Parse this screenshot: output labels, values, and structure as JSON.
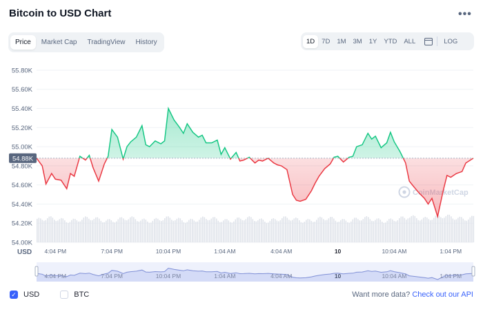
{
  "page": {
    "title": "Bitcoin to USD Chart",
    "more_glyph": "•••"
  },
  "tabs": [
    "Price",
    "Market Cap",
    "TradingView",
    "History"
  ],
  "active_tab": 0,
  "ranges": [
    "1D",
    "7D",
    "1M",
    "3M",
    "1Y",
    "YTD",
    "ALL"
  ],
  "active_range": 0,
  "log_label": "LOG",
  "calendar_icon": "calendar-icon",
  "colors": {
    "up": "#16c784",
    "down": "#ea3943",
    "accent": "#3861fb"
  },
  "watermark": "CoinMarketCap",
  "footer": {
    "usd_label": "USD",
    "usd_checked": true,
    "btc_label": "BTC",
    "btc_checked": false,
    "api_text": "Want more data?",
    "api_link": "Check out our API"
  },
  "chart_data": {
    "type": "line",
    "title": "",
    "xlabel": "",
    "ylabel": "",
    "y_ticks": [
      "55.80K",
      "55.60K",
      "55.40K",
      "55.20K",
      "55.00K",
      "54.80K",
      "54.60K",
      "54.40K",
      "54.20K",
      "54.00K"
    ],
    "ylim": [
      54000,
      55850
    ],
    "x_ticks": [
      "4:04 PM",
      "7:04 PM",
      "10:04 PM",
      "1:04 AM",
      "4:04 AM",
      "10",
      "10:04 AM",
      "1:04 PM"
    ],
    "x_tick_hours": [
      1,
      4,
      7,
      10,
      13,
      16,
      19,
      22
    ],
    "x_unit_label": "USD",
    "reference_value": 54880,
    "reference_label": "54.88K",
    "grid": true,
    "hours": [
      0,
      0.3,
      0.5,
      0.8,
      1,
      1.3,
      1.6,
      1.8,
      2,
      2.3,
      2.6,
      2.8,
      3,
      3.3,
      3.6,
      3.8,
      4,
      4.3,
      4.6,
      4.8,
      5,
      5.3,
      5.6,
      5.8,
      6,
      6.3,
      6.6,
      6.8,
      7,
      7.3,
      7.6,
      7.8,
      8,
      8.3,
      8.6,
      8.8,
      9,
      9.3,
      9.6,
      9.8,
      10,
      10.3,
      10.6,
      10.8,
      11,
      11.3,
      11.6,
      11.8,
      12,
      12.3,
      12.6,
      12.8,
      13,
      13.3,
      13.6,
      13.8,
      14,
      14.3,
      14.6,
      14.8,
      15,
      15.3,
      15.6,
      15.8,
      16,
      16.3,
      16.6,
      16.8,
      17,
      17.3,
      17.6,
      17.8,
      18,
      18.3,
      18.6,
      18.8,
      19,
      19.3,
      19.6,
      19.8,
      20,
      20.3,
      20.6,
      20.8,
      21,
      21.3,
      21.6,
      21.8,
      22,
      22.3,
      22.6,
      22.8,
      23.2
    ],
    "prices": [
      54880,
      54800,
      54610,
      54720,
      54660,
      54650,
      54560,
      54720,
      54690,
      54900,
      54860,
      54910,
      54780,
      54640,
      54820,
      54900,
      55180,
      55100,
      54870,
      55000,
      55050,
      55100,
      55220,
      55020,
      55000,
      55060,
      55030,
      55060,
      55400,
      55280,
      55200,
      55140,
      55240,
      55150,
      55100,
      55120,
      55040,
      55040,
      55070,
      54920,
      54990,
      54870,
      54940,
      54850,
      54860,
      54890,
      54830,
      54860,
      54850,
      54880,
      54830,
      54810,
      54800,
      54760,
      54500,
      54440,
      54430,
      54450,
      54540,
      54620,
      54690,
      54770,
      54820,
      54890,
      54900,
      54840,
      54890,
      54900,
      55000,
      55020,
      55140,
      55080,
      55110,
      54990,
      55040,
      55150,
      55050,
      54950,
      54830,
      54640,
      54590,
      54520,
      54460,
      54400,
      54460,
      54270,
      54540,
      54700,
      54680,
      54720,
      54740,
      54830,
      54880
    ]
  }
}
